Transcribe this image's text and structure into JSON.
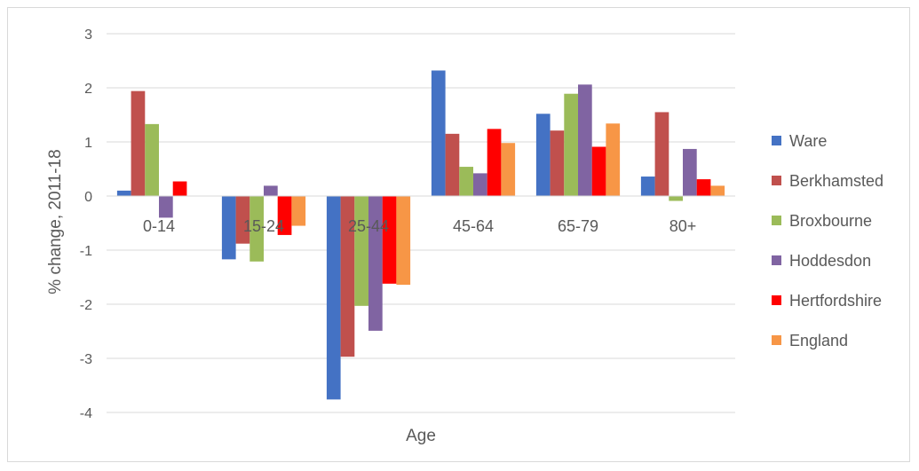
{
  "chart_data": {
    "type": "bar",
    "title": "",
    "xlabel": "Age",
    "ylabel": "% change, 2011-18",
    "ylim": [
      -4,
      3
    ],
    "yticks": [
      3,
      2,
      1,
      0,
      -1,
      -2,
      -3,
      -4
    ],
    "grid": true,
    "legend_position": "right",
    "categories": [
      "0-14",
      "15-24",
      "25-44",
      "45-64",
      "65-79",
      "80+"
    ],
    "series": [
      {
        "name": "Ware",
        "color": "#4472C4",
        "values": [
          0.1,
          -1.17,
          -3.76,
          2.32,
          1.52,
          0.36
        ]
      },
      {
        "name": "Berkhamsted",
        "color": "#C0504D",
        "values": [
          1.94,
          -0.88,
          -2.97,
          1.15,
          1.21,
          1.55
        ]
      },
      {
        "name": "Broxbourne",
        "color": "#9BBB59",
        "values": [
          1.33,
          -1.21,
          -2.03,
          0.54,
          1.89,
          -0.09
        ]
      },
      {
        "name": "Hoddesdon",
        "color": "#8064A2",
        "values": [
          -0.4,
          0.19,
          -2.49,
          0.42,
          2.06,
          0.87
        ]
      },
      {
        "name": "Hertfordshire",
        "color": "#FF0000",
        "values": [
          0.27,
          -0.72,
          -1.62,
          1.24,
          0.91,
          0.31
        ]
      },
      {
        "name": "England",
        "color": "#F79646",
        "values": [
          0.0,
          -0.55,
          -1.64,
          0.98,
          1.34,
          0.19
        ]
      }
    ]
  }
}
